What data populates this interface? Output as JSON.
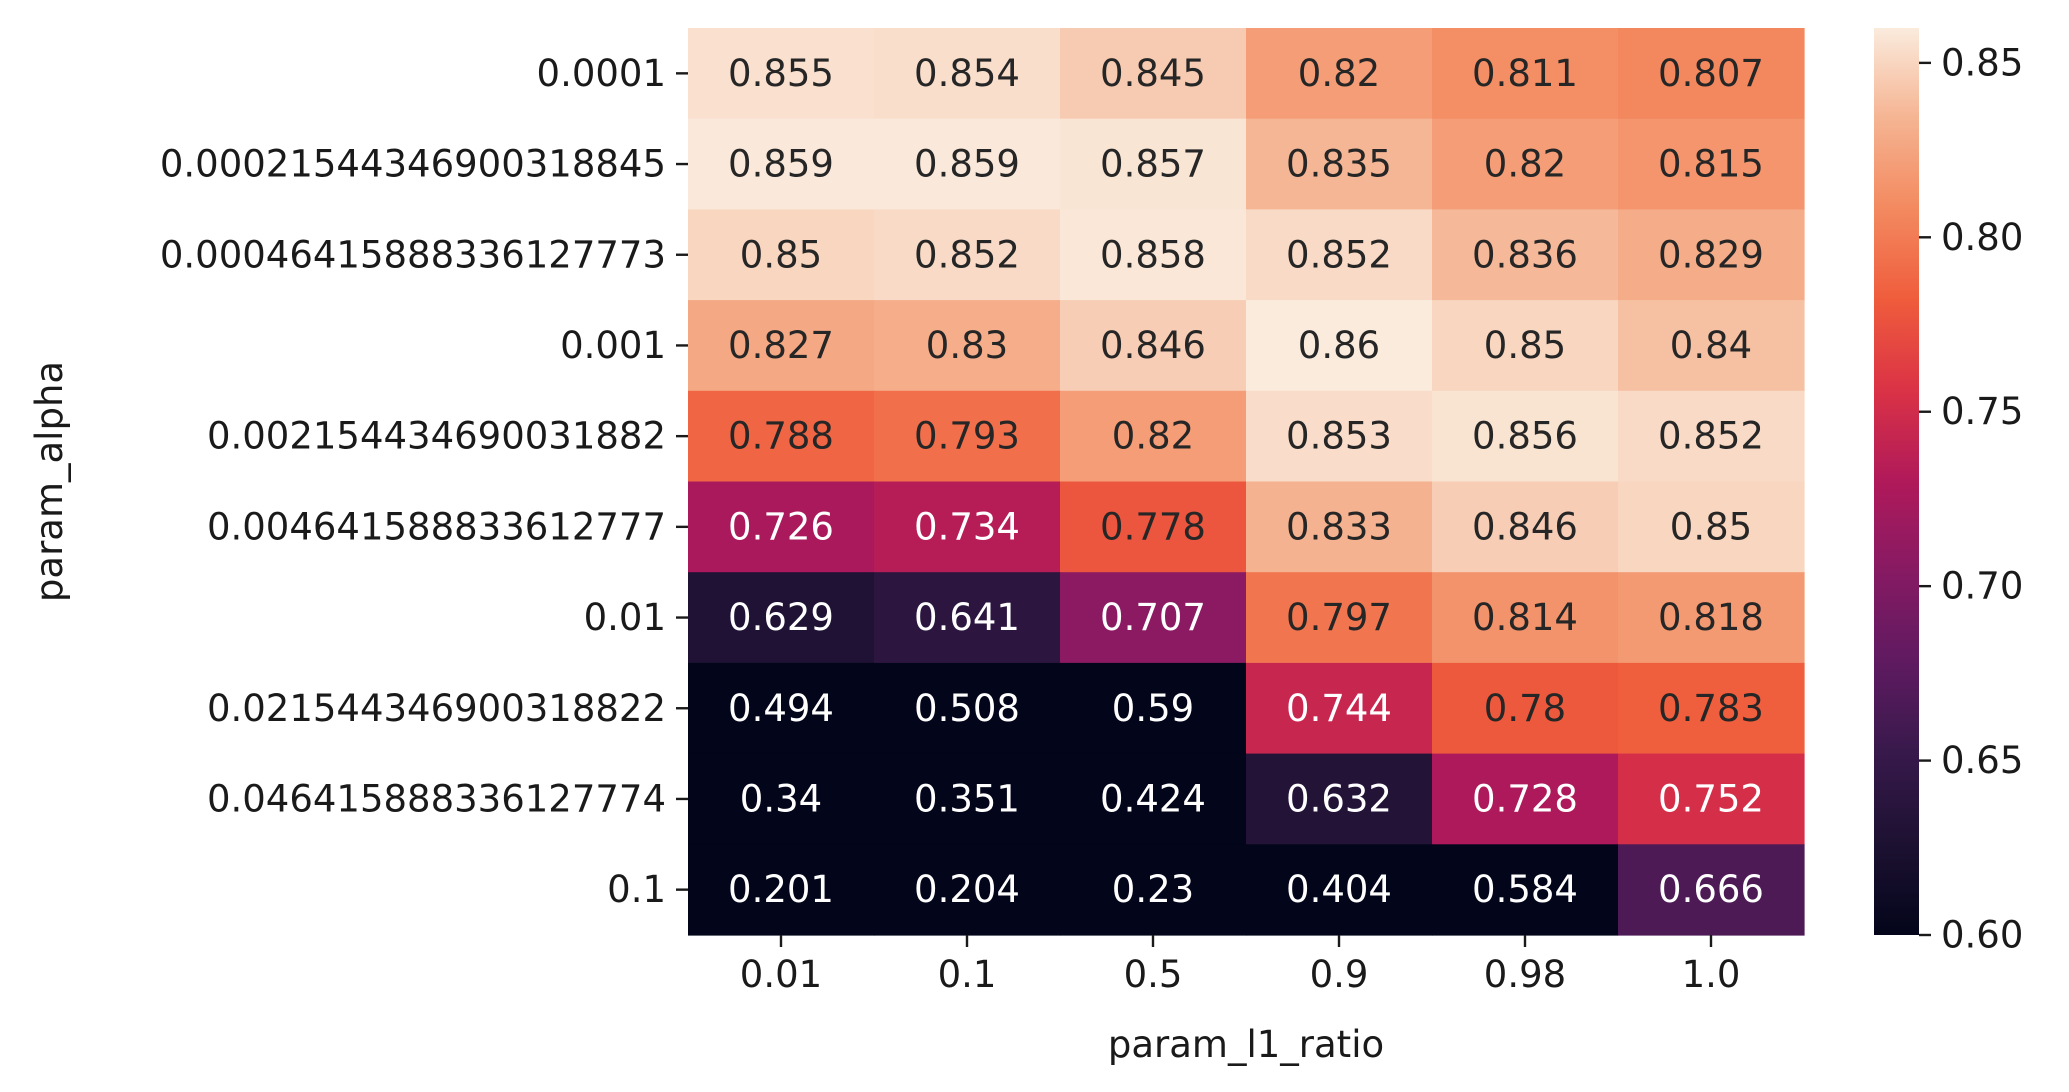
{
  "chart_data": {
    "type": "heatmap",
    "xlabel": "param_l1_ratio",
    "ylabel": "param_alpha",
    "x_categories": [
      "0.01",
      "0.1",
      "0.5",
      "0.9",
      "0.98",
      "1.0"
    ],
    "y_categories": [
      "0.0001",
      "0.00021544346900318845",
      "0.00046415888336127773",
      "0.001",
      "0.002154434690031882",
      "0.004641588833612777",
      "0.01",
      "0.021544346900318822",
      "0.046415888336127774",
      "0.1"
    ],
    "values": [
      [
        0.855,
        0.854,
        0.845,
        0.82,
        0.811,
        0.807
      ],
      [
        0.859,
        0.859,
        0.857,
        0.835,
        0.82,
        0.815
      ],
      [
        0.85,
        0.852,
        0.858,
        0.852,
        0.836,
        0.829
      ],
      [
        0.827,
        0.83,
        0.846,
        0.86,
        0.85,
        0.84
      ],
      [
        0.788,
        0.793,
        0.82,
        0.853,
        0.856,
        0.852
      ],
      [
        0.726,
        0.734,
        0.778,
        0.833,
        0.846,
        0.85
      ],
      [
        0.629,
        0.641,
        0.707,
        0.797,
        0.814,
        0.818
      ],
      [
        0.494,
        0.508,
        0.59,
        0.744,
        0.78,
        0.783
      ],
      [
        0.34,
        0.351,
        0.424,
        0.632,
        0.728,
        0.752
      ],
      [
        0.201,
        0.204,
        0.23,
        0.404,
        0.584,
        0.666
      ]
    ],
    "cell_labels": [
      [
        "0.855",
        "0.854",
        "0.845",
        "0.82",
        "0.811",
        "0.807"
      ],
      [
        "0.859",
        "0.859",
        "0.857",
        "0.835",
        "0.82",
        "0.815"
      ],
      [
        "0.85",
        "0.852",
        "0.858",
        "0.852",
        "0.836",
        "0.829"
      ],
      [
        "0.827",
        "0.83",
        "0.846",
        "0.86",
        "0.85",
        "0.84"
      ],
      [
        "0.788",
        "0.793",
        "0.82",
        "0.853",
        "0.856",
        "0.852"
      ],
      [
        "0.726",
        "0.734",
        "0.778",
        "0.833",
        "0.846",
        "0.85"
      ],
      [
        "0.629",
        "0.641",
        "0.707",
        "0.797",
        "0.814",
        "0.818"
      ],
      [
        "0.494",
        "0.508",
        "0.59",
        "0.744",
        "0.78",
        "0.783"
      ],
      [
        "0.34",
        "0.351",
        "0.424",
        "0.632",
        "0.728",
        "0.752"
      ],
      [
        "0.201",
        "0.204",
        "0.23",
        "0.404",
        "0.584",
        "0.666"
      ]
    ],
    "colorscale": {
      "name": "rocket",
      "vmin": 0.6,
      "vmax": 0.86,
      "ticks": [
        "0.60",
        "0.65",
        "0.70",
        "0.75",
        "0.80",
        "0.85"
      ]
    },
    "grid": false,
    "legend": "colorbar-right"
  }
}
